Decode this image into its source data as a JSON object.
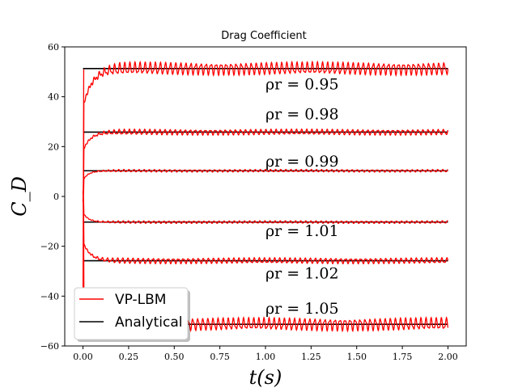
{
  "chart_data": {
    "type": "line",
    "title": "Drag Coefficient",
    "xlabel": "t(s)",
    "ylabel": "C_D",
    "xlim": [
      -0.1,
      2.1
    ],
    "ylim": [
      -60,
      60
    ],
    "x_ticks": [
      0.0,
      0.25,
      0.5,
      0.75,
      1.0,
      1.25,
      1.5,
      1.75,
      2.0
    ],
    "x_tick_labels": [
      "0.00",
      "0.25",
      "0.50",
      "0.75",
      "1.00",
      "1.25",
      "1.50",
      "1.75",
      "2.00"
    ],
    "y_ticks": [
      -60,
      -40,
      -20,
      0,
      20,
      40,
      60
    ],
    "y_tick_labels": [
      "−60",
      "−40",
      "−20",
      "0",
      "20",
      "40",
      "60"
    ],
    "grid": false,
    "legend": {
      "position": "lower-left",
      "entries": [
        {
          "label": "VP-LBM",
          "color": "#ff0000"
        },
        {
          "label": "Analytical",
          "color": "#000000"
        }
      ]
    },
    "series": [
      {
        "name": "Analytical",
        "rho_label": "ρr = 0.95",
        "analytical": 51.3,
        "start": 37,
        "amp": 2.0,
        "tau": 0.05,
        "label_y": 45
      },
      {
        "name": "Analytical",
        "rho_label": "ρr = 0.98",
        "analytical": 25.8,
        "start": 19,
        "amp": 0.9,
        "tau": 0.04,
        "label_y": 33
      },
      {
        "name": "Analytical",
        "rho_label": "ρr = 0.99",
        "analytical": 10.3,
        "start": 7,
        "amp": 0.4,
        "tau": 0.03,
        "label_y": 14
      },
      {
        "name": "Analytical",
        "rho_label": "ρr = 1.01",
        "analytical": -10.3,
        "start": -7,
        "amp": 0.4,
        "tau": 0.03,
        "label_y": -14
      },
      {
        "name": "Analytical",
        "rho_label": "ρr = 1.02",
        "analytical": -25.8,
        "start": -19,
        "amp": 0.9,
        "tau": 0.04,
        "label_y": -31
      },
      {
        "name": "Analytical",
        "rho_label": "ρr = 1.05",
        "analytical": -51.3,
        "start": -37,
        "amp": 2.0,
        "tau": 0.05,
        "label_y": -45
      }
    ]
  }
}
